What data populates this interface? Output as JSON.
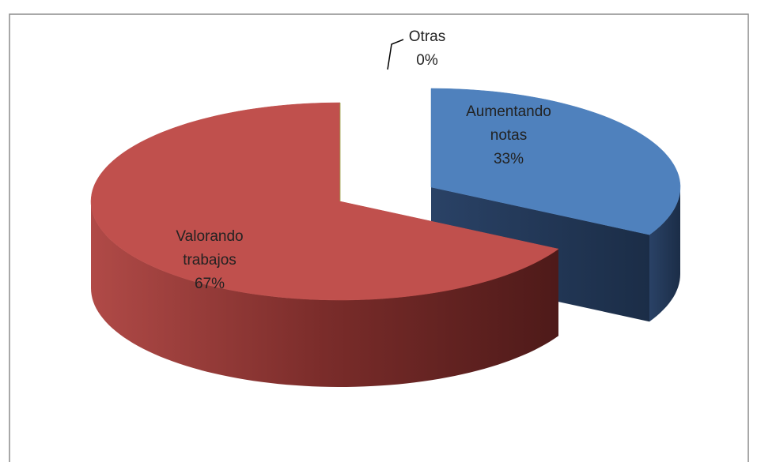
{
  "chart_data": {
    "type": "pie3d",
    "categories": [
      "Aumentando notas",
      "Valorando trabajos",
      "Otras"
    ],
    "values": [
      33,
      67,
      0
    ],
    "value_labels": [
      "33%",
      "67%",
      "0%"
    ],
    "colors": [
      "#4f81bd",
      "#c0504d",
      "#9bbb59"
    ],
    "exploded": [
      true,
      false,
      false
    ]
  }
}
